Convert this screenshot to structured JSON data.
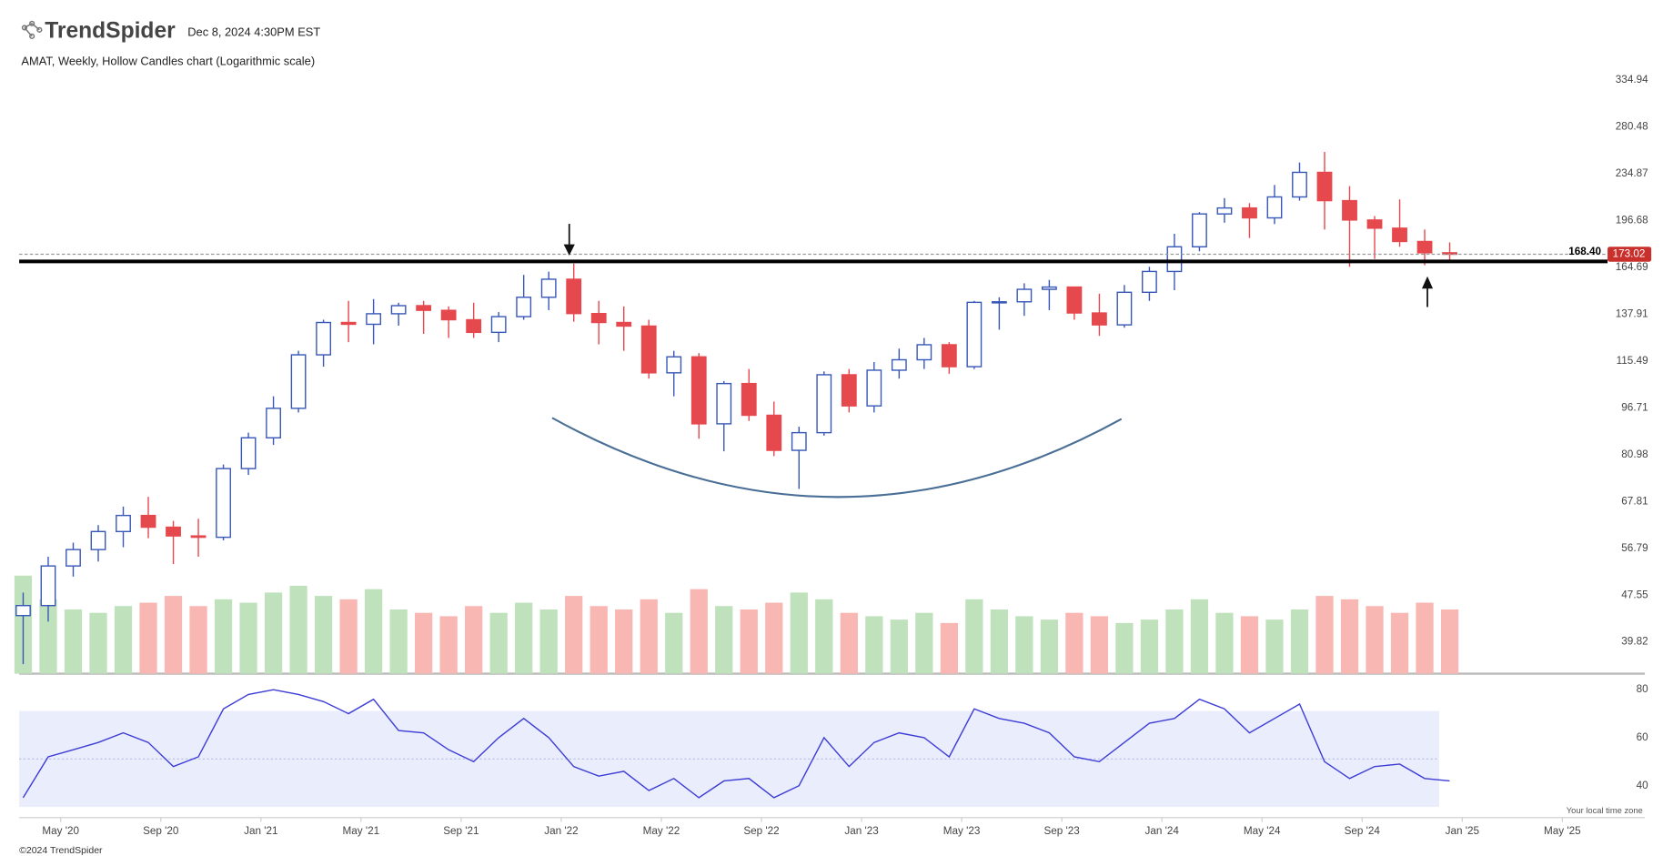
{
  "header": {
    "brand": "TrendSpider",
    "timestamp": "Dec 8, 2024 4:30PM EST",
    "timezone_note": "Your local time zone",
    "footer": "©2024 TrendSpider"
  },
  "chart_data": {
    "type": "candlestick",
    "title": "AMAT, Weekly, Hollow Candles chart (Logarithmic scale)",
    "x": [
      "2020-03",
      "2020-04",
      "2020-05",
      "2020-06",
      "2020-07",
      "2020-08",
      "2020-09",
      "2020-10",
      "2020-11",
      "2020-12",
      "2021-01",
      "2021-02",
      "2021-03",
      "2021-04",
      "2021-05",
      "2021-06",
      "2021-07",
      "2021-08",
      "2021-09",
      "2021-10",
      "2021-11",
      "2021-12",
      "2022-01",
      "2022-02",
      "2022-03",
      "2022-04",
      "2022-05",
      "2022-06",
      "2022-07",
      "2022-08",
      "2022-09",
      "2022-10",
      "2022-11",
      "2022-12",
      "2023-01",
      "2023-02",
      "2023-03",
      "2023-04",
      "2023-05",
      "2023-06",
      "2023-07",
      "2023-08",
      "2023-09",
      "2023-10",
      "2023-11",
      "2023-12",
      "2024-01",
      "2024-02",
      "2024-03",
      "2024-04",
      "2024-05",
      "2024-06",
      "2024-07",
      "2024-08",
      "2024-09",
      "2024-10",
      "2024-11",
      "2024-12"
    ],
    "open": [
      44,
      45.7,
      53.1,
      56.5,
      60.5,
      64.3,
      61.5,
      59.5,
      59.2,
      76.8,
      86.3,
      96.5,
      118.2,
      133.6,
      132.7,
      138.1,
      142.4,
      139.9,
      135,
      128.7,
      136.6,
      147,
      157.4,
      138.2,
      133.6,
      131.8,
      110.4,
      117.3,
      91,
      106,
      94,
      82.3,
      88,
      109.6,
      97.4,
      111.5,
      116,
      122.8,
      113,
      144.2,
      144.5,
      151.5,
      152.8,
      138.5,
      132.4,
      149.8,
      162.1,
      178,
      201.6,
      206.2,
      198.6,
      215,
      236,
      212,
      197,
      191,
      181.6,
      174
    ],
    "high": [
      48,
      55,
      58,
      62,
      66.5,
      69,
      63,
      63.5,
      78,
      88,
      101,
      120,
      135,
      145,
      146,
      144,
      145,
      142,
      144,
      139,
      160,
      162,
      167,
      145,
      142,
      135,
      120,
      119,
      107,
      112,
      99,
      90,
      111,
      112,
      115,
      121,
      126,
      124,
      145,
      147,
      155,
      157,
      153,
      149,
      154,
      165,
      187,
      203,
      214,
      210,
      225,
      245,
      255,
      224,
      200,
      213,
      190,
      181
    ],
    "low": [
      36.6,
      43,
      51,
      54,
      57,
      59,
      53.5,
      55,
      58.5,
      75,
      84,
      95,
      113,
      124,
      123,
      132,
      128,
      126,
      126,
      124,
      135,
      140,
      134,
      123,
      120,
      108,
      101,
      86,
      82,
      92,
      80.5,
      71.1,
      87,
      95,
      95,
      108,
      112,
      110,
      112,
      130,
      137,
      140,
      135,
      127,
      131,
      145,
      151,
      175,
      195,
      184,
      194,
      212,
      190,
      165,
      170,
      178,
      166,
      168.5
    ],
    "close": [
      45.7,
      53.1,
      56.5,
      60.5,
      64.3,
      61.5,
      59.5,
      59.2,
      76.8,
      86.3,
      96.5,
      118.2,
      133.6,
      132.7,
      138.1,
      142.4,
      139.9,
      135,
      128.7,
      136.6,
      147,
      157.4,
      138.2,
      133.6,
      131.8,
      110.4,
      117.3,
      91,
      106,
      94,
      82.3,
      88,
      109.6,
      97.4,
      111.5,
      116,
      122.8,
      113,
      144.2,
      144.5,
      151.5,
      152.8,
      138.5,
      132.4,
      149.8,
      162.1,
      178,
      201.6,
      206.2,
      198.6,
      215,
      236,
      212,
      197,
      191,
      181.6,
      174,
      173.02
    ],
    "volume": [
      58,
      44,
      38,
      36,
      40,
      42,
      46,
      40,
      44,
      42,
      48,
      52,
      46,
      44,
      50,
      38,
      36,
      34,
      40,
      36,
      42,
      38,
      46,
      40,
      38,
      44,
      36,
      50,
      40,
      38,
      42,
      48,
      44,
      36,
      34,
      32,
      36,
      30,
      44,
      38,
      34,
      32,
      36,
      34,
      30,
      32,
      38,
      44,
      36,
      34,
      32,
      38,
      46,
      44,
      40,
      36,
      42,
      38
    ],
    "up_color": "#3858b8",
    "down_color": "#e5484d",
    "volume_up_color": "#bfe2bd",
    "volume_down_color": "#f8b7b3",
    "log_scale": true,
    "ylim": [
      35.3,
      385.8
    ],
    "yticks": [
      39.82,
      47.55,
      56.79,
      67.81,
      80.98,
      96.71,
      115.49,
      137.91,
      164.69,
      196.68,
      234.87,
      280.48,
      334.94
    ],
    "xlim": [
      "2020-03",
      "2025-08"
    ],
    "xticks": [
      {
        "value": "2020-05",
        "label": "May '20"
      },
      {
        "value": "2020-09",
        "label": "Sep '20"
      },
      {
        "value": "2021-01",
        "label": "Jan '21"
      },
      {
        "value": "2021-05",
        "label": "May '21"
      },
      {
        "value": "2021-09",
        "label": "Sep '21"
      },
      {
        "value": "2022-01",
        "label": "Jan '22"
      },
      {
        "value": "2022-05",
        "label": "May '22"
      },
      {
        "value": "2022-09",
        "label": "Sep '22"
      },
      {
        "value": "2023-01",
        "label": "Jan '23"
      },
      {
        "value": "2023-05",
        "label": "May '23"
      },
      {
        "value": "2023-09",
        "label": "Sep '23"
      },
      {
        "value": "2024-01",
        "label": "Jan '24"
      },
      {
        "value": "2024-05",
        "label": "May '24"
      },
      {
        "value": "2024-09",
        "label": "Sep '24"
      },
      {
        "value": "2025-01",
        "label": "Jan '25"
      },
      {
        "value": "2025-05",
        "label": "May '25"
      }
    ],
    "support": {
      "value": 168.4,
      "label": "168.40"
    },
    "last_price": {
      "value": 173.02,
      "label": "173.02"
    },
    "rsi": {
      "values": [
        35,
        52,
        55,
        58,
        62,
        58,
        48,
        52,
        72,
        78,
        80,
        78,
        75,
        70,
        76,
        63,
        62,
        55,
        50,
        60,
        68,
        60,
        48,
        44,
        46,
        38,
        43,
        35,
        42,
        43,
        35,
        40,
        60,
        48,
        58,
        62,
        60,
        52,
        72,
        68,
        66,
        62,
        52,
        50,
        58,
        66,
        68,
        76,
        72,
        62,
        68,
        74,
        50,
        43,
        48,
        49,
        43,
        42
      ],
      "color": "#3d3dd6",
      "ylim": [
        27.6,
        83.1
      ],
      "yticks": [
        40,
        60,
        80
      ]
    }
  }
}
